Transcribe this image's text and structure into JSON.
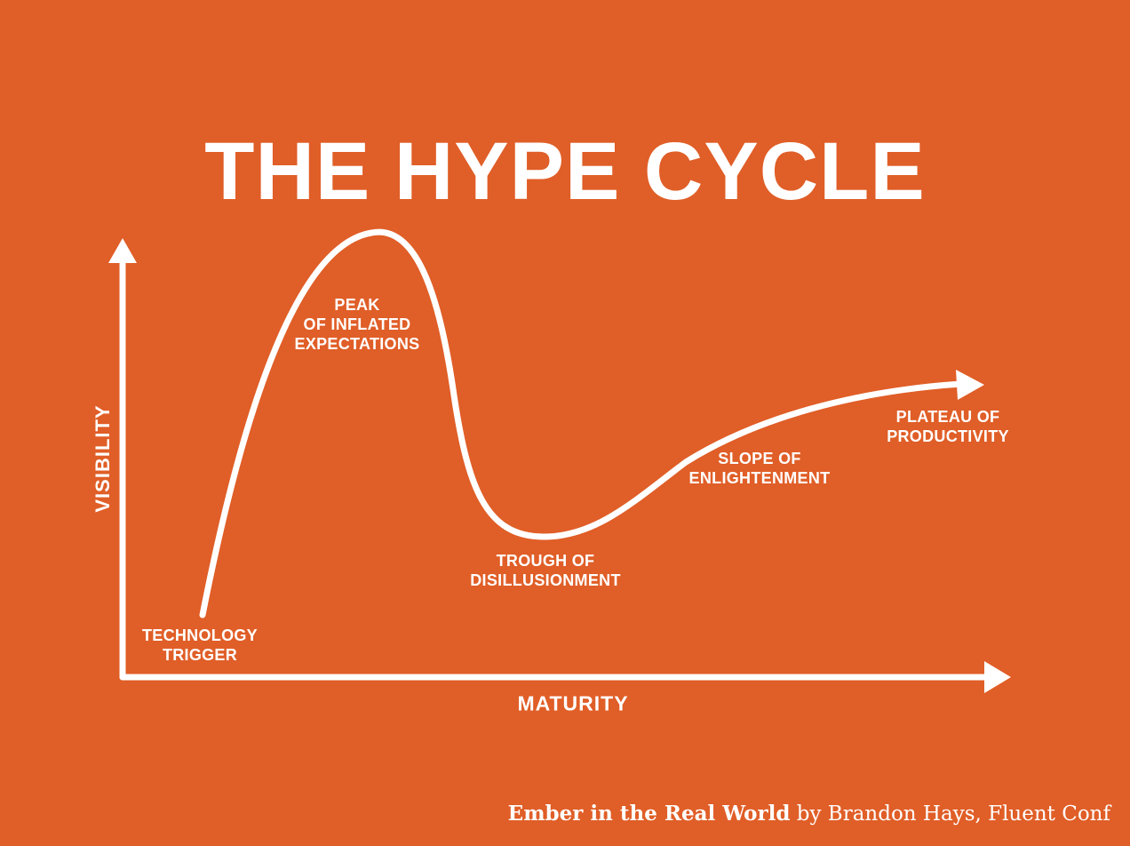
{
  "title": "THE HYPE CYCLE",
  "axes": {
    "y_label": "VISIBILITY",
    "x_label": "MATURITY"
  },
  "phases": [
    {
      "id": "technology-trigger",
      "label": "TECHNOLOGY\nTRIGGER"
    },
    {
      "id": "peak",
      "label": "PEAK\nOF INFLATED\nEXPECTATIONS"
    },
    {
      "id": "trough",
      "label": "TROUGH OF\nDISILLUSIONMENT"
    },
    {
      "id": "slope",
      "label": "SLOPE OF\nENLIGHTENMENT"
    },
    {
      "id": "plateau",
      "label": "PLATEAU OF\nPRODUCTIVITY"
    }
  ],
  "credit": {
    "bold": "Ember in the Real World",
    "rest": " by Brandon Hays, Fluent Conf"
  },
  "colors": {
    "background": "#E05E27",
    "foreground": "#FFFFFF"
  }
}
